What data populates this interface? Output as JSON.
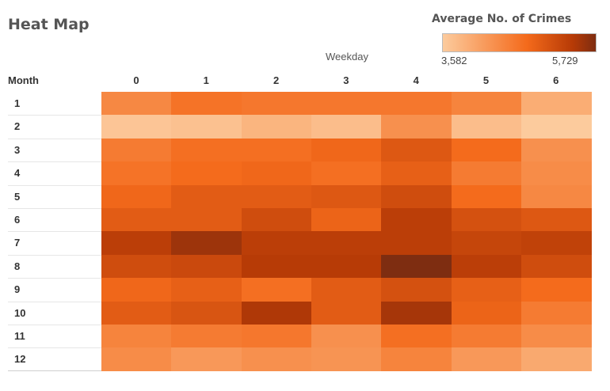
{
  "title": "Heat Map",
  "legend": {
    "title": "Average No. of Crimes",
    "min_label": "3,582",
    "max_label": "5,729",
    "colors": [
      "#FCCB9D",
      "#F46A1B",
      "#B63A06",
      "#7E2D11"
    ]
  },
  "chart_data": {
    "type": "heatmap",
    "x_title": "Weekday",
    "row_header": "Month",
    "columns": [
      "0",
      "1",
      "2",
      "3",
      "4",
      "5",
      "6"
    ],
    "rows": [
      "1",
      "2",
      "3",
      "4",
      "5",
      "6",
      "7",
      "8",
      "9",
      "10",
      "11",
      "12"
    ],
    "color_range": [
      3582,
      5729
    ],
    "values": [
      [
        4400,
        4650,
        4600,
        4600,
        4600,
        4450,
        3950
      ],
      [
        3650,
        3700,
        3850,
        3750,
        4300,
        3750,
        3582
      ],
      [
        4550,
        4700,
        4700,
        4800,
        5000,
        4750,
        4300
      ],
      [
        4650,
        4750,
        4800,
        4700,
        4900,
        4550,
        4350
      ],
      [
        4800,
        4950,
        4950,
        5000,
        5150,
        4750,
        4400
      ],
      [
        4950,
        4950,
        5150,
        4850,
        5350,
        5100,
        5000
      ],
      [
        5350,
        5550,
        5350,
        5350,
        5350,
        5250,
        5300
      ],
      [
        5150,
        5200,
        5400,
        5400,
        5729,
        5350,
        5150
      ],
      [
        4800,
        4900,
        4700,
        4950,
        5100,
        4900,
        4750
      ],
      [
        4950,
        5050,
        5450,
        4950,
        5500,
        4850,
        4550
      ],
      [
        4450,
        4550,
        4600,
        4300,
        4700,
        4550,
        4350
      ],
      [
        4350,
        4200,
        4300,
        4250,
        4450,
        4200,
        4000
      ]
    ]
  }
}
